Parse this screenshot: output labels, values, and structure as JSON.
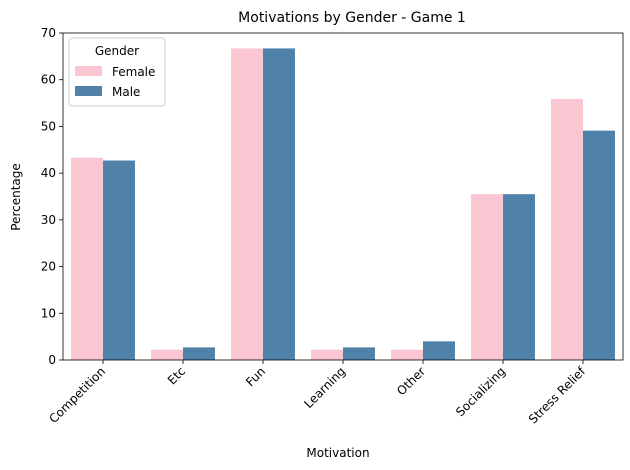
{
  "chart_data": {
    "type": "bar",
    "title": "Motivations by Gender - Game 1",
    "xlabel": "Motivation",
    "ylabel": "Percentage",
    "categories": [
      "Competition",
      "Etc",
      "Fun",
      "Learning",
      "Other",
      "Socializing",
      "Stress Relief"
    ],
    "series": [
      {
        "name": "Female",
        "color": "#f9c6d1",
        "values": [
          43.3,
          2.2,
          66.7,
          2.2,
          2.2,
          35.5,
          55.9
        ]
      },
      {
        "name": "Male",
        "color": "#4f81a9",
        "values": [
          42.7,
          2.7,
          66.7,
          2.7,
          4.0,
          35.5,
          49.1
        ]
      }
    ],
    "ylim": [
      0,
      70
    ],
    "yticks": [
      0,
      10,
      20,
      30,
      40,
      50,
      60,
      70
    ],
    "legend": {
      "title": "Gender",
      "placement": "top-left"
    },
    "grid": false
  }
}
